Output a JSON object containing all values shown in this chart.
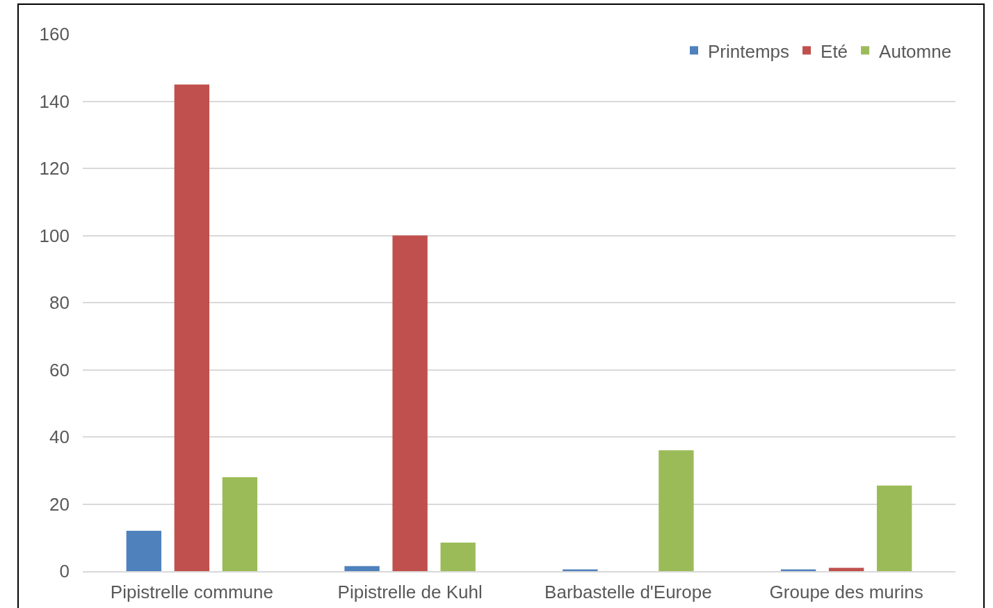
{
  "chart_data": {
    "type": "bar",
    "categories": [
      "Pipistrelle commune",
      "Pipistrelle de Kuhl",
      "Barbastelle d'Europe",
      "Groupe des murins"
    ],
    "series": [
      {
        "name": "Printemps",
        "color": "#4f81bd",
        "values": [
          12,
          1.5,
          0.5,
          0.5
        ]
      },
      {
        "name": "Eté",
        "color": "#c0504d",
        "values": [
          145,
          100,
          0,
          1
        ]
      },
      {
        "name": "Automne",
        "color": "#9bbb59",
        "values": [
          28,
          8.5,
          36,
          25.5
        ]
      }
    ],
    "ylim": [
      0,
      160
    ],
    "yticks": [
      0,
      20,
      40,
      60,
      80,
      100,
      120,
      140,
      160
    ],
    "grid": "y",
    "legend": "top right"
  }
}
